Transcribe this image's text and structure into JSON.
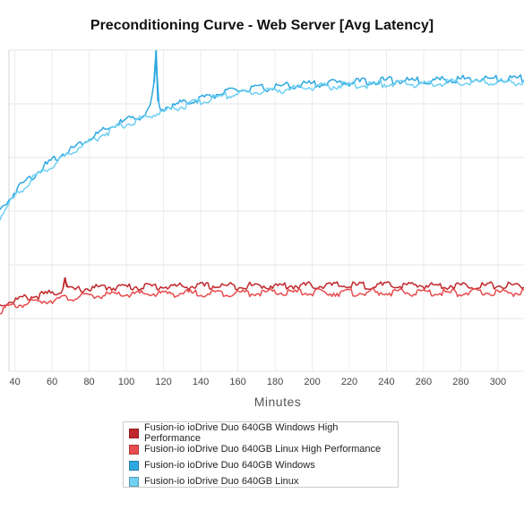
{
  "chart_data": {
    "type": "line",
    "title": "Preconditioning Curve - Web Server [Avg Latency]",
    "xlabel": "Minutes",
    "ylabel": "",
    "xlim": [
      32,
      314
    ],
    "ylim": [
      0,
      1
    ],
    "x_ticks": [
      40,
      60,
      80,
      100,
      120,
      140,
      160,
      180,
      200,
      220,
      240,
      260,
      280,
      300
    ],
    "grid": true,
    "legend_position": "bottom",
    "series": [
      {
        "name": "Fusion-io ioDrive Duo 640GB Windows High Performance",
        "color": "#c0282d",
        "points": [
          [
            32,
            0.205
          ],
          [
            36,
            0.215
          ],
          [
            40,
            0.222
          ],
          [
            45,
            0.228
          ],
          [
            50,
            0.233
          ],
          [
            55,
            0.238
          ],
          [
            60,
            0.243
          ],
          [
            64,
            0.248
          ],
          [
            66,
            0.262
          ],
          [
            67,
            0.292
          ],
          [
            68,
            0.262
          ],
          [
            70,
            0.252
          ],
          [
            75,
            0.255
          ],
          [
            80,
            0.258
          ],
          [
            90,
            0.262
          ],
          [
            100,
            0.263
          ],
          [
            110,
            0.264
          ],
          [
            120,
            0.264
          ],
          [
            140,
            0.265
          ],
          [
            160,
            0.266
          ],
          [
            180,
            0.266
          ],
          [
            200,
            0.267
          ],
          [
            220,
            0.267
          ],
          [
            240,
            0.267
          ],
          [
            260,
            0.267
          ],
          [
            280,
            0.267
          ],
          [
            300,
            0.267
          ],
          [
            314,
            0.267
          ]
        ]
      },
      {
        "name": "Fusion-io ioDrive Duo 640GB Linux High Performance",
        "color": "#e84c4f",
        "points": [
          [
            32,
            0.19
          ],
          [
            36,
            0.198
          ],
          [
            40,
            0.204
          ],
          [
            45,
            0.21
          ],
          [
            50,
            0.215
          ],
          [
            55,
            0.219
          ],
          [
            60,
            0.223
          ],
          [
            65,
            0.226
          ],
          [
            70,
            0.229
          ],
          [
            75,
            0.232
          ],
          [
            80,
            0.234
          ],
          [
            90,
            0.237
          ],
          [
            100,
            0.239
          ],
          [
            110,
            0.241
          ],
          [
            120,
            0.242
          ],
          [
            140,
            0.243
          ],
          [
            160,
            0.244
          ],
          [
            180,
            0.245
          ],
          [
            200,
            0.245
          ],
          [
            220,
            0.245
          ],
          [
            240,
            0.245
          ],
          [
            260,
            0.245
          ],
          [
            280,
            0.245
          ],
          [
            300,
            0.245
          ],
          [
            314,
            0.245
          ]
        ]
      },
      {
        "name": "Fusion-io ioDrive Duo 640GB Windows",
        "color": "#2ea8e0",
        "points": [
          [
            32,
            0.5
          ],
          [
            35,
            0.52
          ],
          [
            40,
            0.56
          ],
          [
            45,
            0.59
          ],
          [
            50,
            0.61
          ],
          [
            55,
            0.635
          ],
          [
            60,
            0.655
          ],
          [
            65,
            0.675
          ],
          [
            70,
            0.69
          ],
          [
            75,
            0.71
          ],
          [
            80,
            0.725
          ],
          [
            85,
            0.74
          ],
          [
            90,
            0.755
          ],
          [
            95,
            0.77
          ],
          [
            100,
            0.78
          ],
          [
            105,
            0.79
          ],
          [
            110,
            0.8
          ],
          [
            113,
            0.82
          ],
          [
            115,
            0.9
          ],
          [
            116,
            1.0
          ],
          [
            117,
            0.84
          ],
          [
            118,
            0.815
          ],
          [
            120,
            0.82
          ],
          [
            130,
            0.835
          ],
          [
            140,
            0.85
          ],
          [
            150,
            0.865
          ],
          [
            160,
            0.875
          ],
          [
            170,
            0.88
          ],
          [
            180,
            0.885
          ],
          [
            190,
            0.89
          ],
          [
            200,
            0.895
          ],
          [
            220,
            0.9
          ],
          [
            240,
            0.905
          ],
          [
            260,
            0.905
          ],
          [
            280,
            0.91
          ],
          [
            300,
            0.91
          ],
          [
            314,
            0.912
          ]
        ]
      },
      {
        "name": "Fusion-io ioDrive Duo 640GB Linux",
        "color": "#6fd0f3",
        "points": [
          [
            32,
            0.48
          ],
          [
            35,
            0.505
          ],
          [
            40,
            0.545
          ],
          [
            45,
            0.575
          ],
          [
            50,
            0.6
          ],
          [
            55,
            0.62
          ],
          [
            60,
            0.64
          ],
          [
            65,
            0.66
          ],
          [
            70,
            0.68
          ],
          [
            75,
            0.7
          ],
          [
            80,
            0.715
          ],
          [
            85,
            0.73
          ],
          [
            90,
            0.745
          ],
          [
            95,
            0.76
          ],
          [
            100,
            0.77
          ],
          [
            105,
            0.78
          ],
          [
            110,
            0.79
          ],
          [
            115,
            0.8
          ],
          [
            120,
            0.81
          ],
          [
            130,
            0.825
          ],
          [
            140,
            0.84
          ],
          [
            150,
            0.855
          ],
          [
            160,
            0.865
          ],
          [
            170,
            0.87
          ],
          [
            180,
            0.875
          ],
          [
            190,
            0.88
          ],
          [
            200,
            0.885
          ],
          [
            220,
            0.89
          ],
          [
            240,
            0.895
          ],
          [
            260,
            0.895
          ],
          [
            280,
            0.9
          ],
          [
            300,
            0.9
          ],
          [
            314,
            0.9
          ]
        ]
      }
    ]
  }
}
